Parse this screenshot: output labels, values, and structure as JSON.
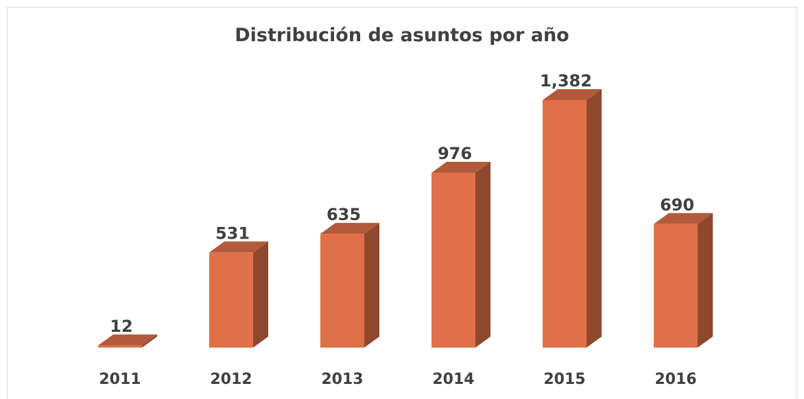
{
  "chart_data": {
    "type": "bar3d",
    "title": "Distribución de asuntos por año",
    "categories": [
      "2011",
      "2012",
      "2013",
      "2014",
      "2015",
      "2016"
    ],
    "values": [
      12,
      531,
      635,
      976,
      1382,
      690
    ],
    "value_labels": [
      "12",
      "531",
      "635",
      "976",
      "1,382",
      "690"
    ],
    "color": "#e07048"
  }
}
